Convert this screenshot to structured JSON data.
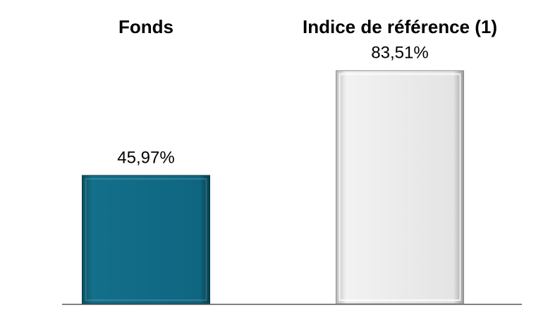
{
  "chart_data": {
    "type": "bar",
    "categories": [
      "Fonds",
      "Indice de référence (1)"
    ],
    "values": [
      45.97,
      83.51
    ],
    "value_labels": [
      "45,97%",
      "83,51%"
    ],
    "colors": [
      "#0e6a84",
      "#e6e6e6"
    ]
  }
}
